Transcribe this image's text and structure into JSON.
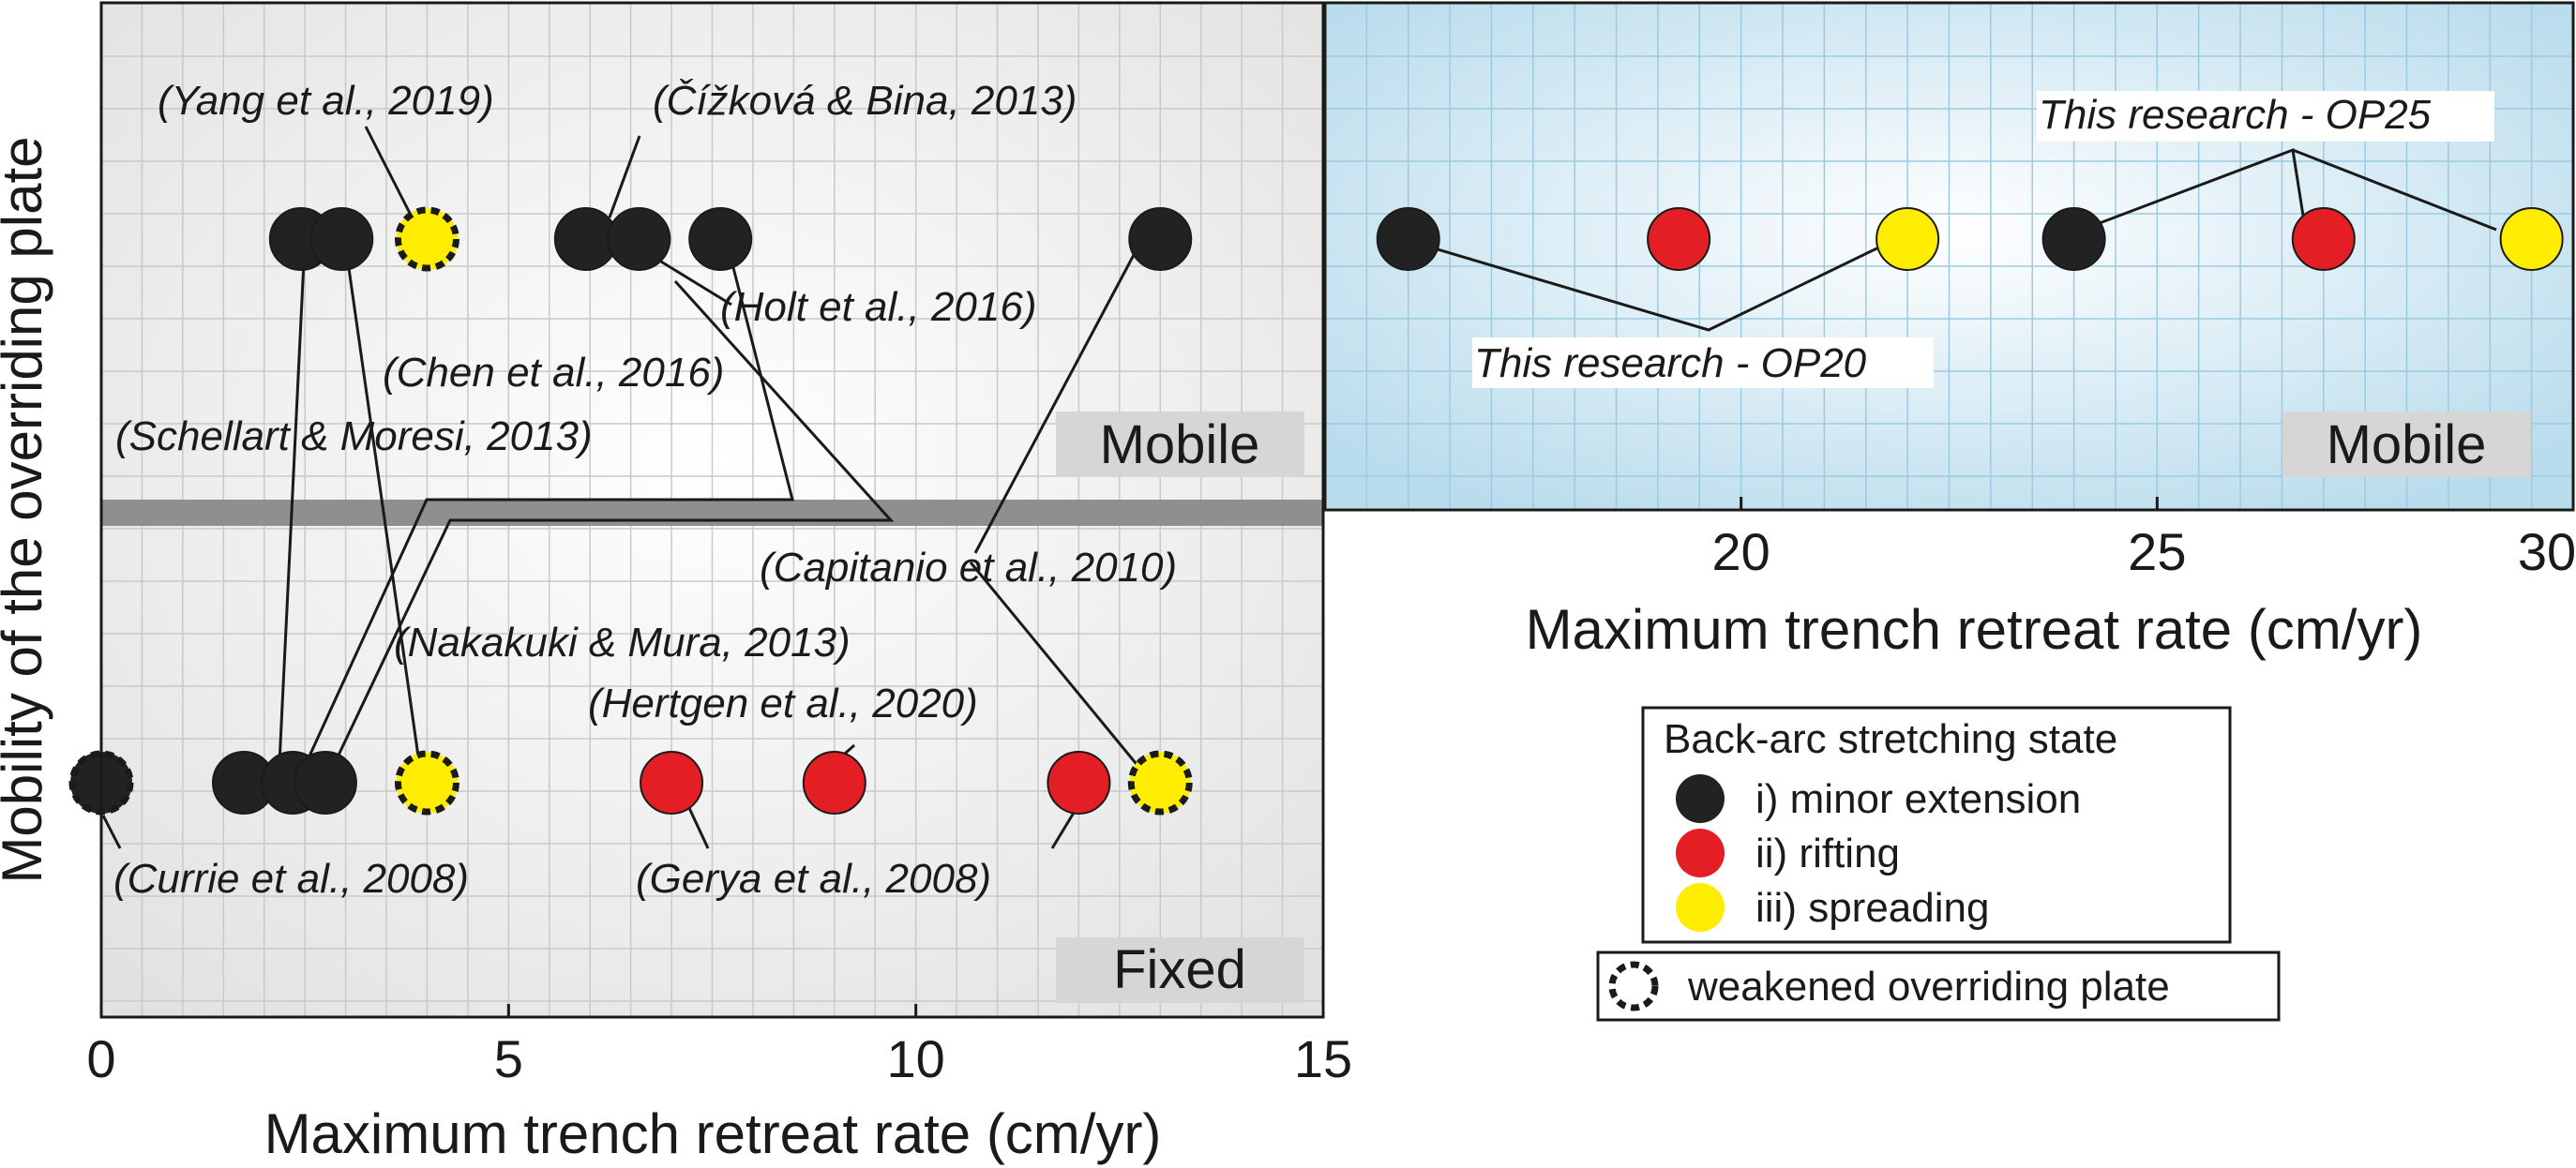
{
  "chart_data": [
    {
      "type": "scatter",
      "panel": "left",
      "xlabel": "Maximum trench retreat rate (cm/yr)",
      "ylabel": "Mobility of the overriding plate",
      "xlim": [
        0,
        15
      ],
      "xticks": [
        "0",
        "5",
        "10",
        "15"
      ],
      "grid": true,
      "band_labels": {
        "mobile": "Mobile",
        "fixed": "Fixed"
      },
      "points": [
        {
          "x": 2.45,
          "row": "mobile",
          "state": "minor extension",
          "weakened": false
        },
        {
          "x": 2.95,
          "row": "mobile",
          "state": "minor extension",
          "weakened": false
        },
        {
          "x": 4.0,
          "row": "mobile",
          "state": "spreading",
          "weakened": true
        },
        {
          "x": 5.95,
          "row": "mobile",
          "state": "minor extension",
          "weakened": false
        },
        {
          "x": 6.6,
          "row": "mobile",
          "state": "minor extension",
          "weakened": false
        },
        {
          "x": 7.6,
          "row": "mobile",
          "state": "minor extension",
          "weakened": false
        },
        {
          "x": 13.0,
          "row": "mobile",
          "state": "minor extension",
          "weakened": false
        },
        {
          "x": 0.0,
          "row": "fixed",
          "state": "minor extension",
          "weakened": true
        },
        {
          "x": 1.75,
          "row": "fixed",
          "state": "minor extension",
          "weakened": false
        },
        {
          "x": 2.35,
          "row": "fixed",
          "state": "minor extension",
          "weakened": false
        },
        {
          "x": 2.75,
          "row": "fixed",
          "state": "minor extension",
          "weakened": false
        },
        {
          "x": 4.0,
          "row": "fixed",
          "state": "spreading",
          "weakened": true
        },
        {
          "x": 7.0,
          "row": "fixed",
          "state": "rifting",
          "weakened": false
        },
        {
          "x": 9.0,
          "row": "fixed",
          "state": "rifting",
          "weakened": false
        },
        {
          "x": 12.0,
          "row": "fixed",
          "state": "rifting",
          "weakened": false
        },
        {
          "x": 13.0,
          "row": "fixed",
          "state": "spreading",
          "weakened": true
        }
      ],
      "annotations": [
        "(Yang et al., 2019)",
        "(Čížková & Bina, 2013)",
        "(Holt et al., 2016)",
        "(Chen et al., 2016)",
        "(Schellart & Moresi, 2013)",
        "(Capitanio et al., 2010)",
        "(Nakakuki & Mura, 2013)",
        "(Hertgen et al., 2020)",
        "(Currie et al., 2008)",
        "(Gerya et al., 2008)"
      ]
    },
    {
      "type": "scatter",
      "panel": "right",
      "xlabel": "Maximum trench retreat rate (cm/yr)",
      "xlim": [
        15,
        30
      ],
      "xticks": [
        "20",
        "25",
        "30"
      ],
      "grid": true,
      "band_label": "Mobile",
      "points": [
        {
          "x": 16.0,
          "state": "minor extension",
          "group": "OP20"
        },
        {
          "x": 19.25,
          "state": "rifting",
          "group": "OP20"
        },
        {
          "x": 22.0,
          "state": "spreading",
          "group": "OP20"
        },
        {
          "x": 24.0,
          "state": "minor extension",
          "group": "OP25"
        },
        {
          "x": 27.0,
          "state": "rifting",
          "group": "OP25"
        },
        {
          "x": 29.5,
          "state": "spreading",
          "group": "OP25"
        }
      ],
      "annotations": [
        "This research - OP20",
        "This research - OP25"
      ]
    }
  ],
  "legend": {
    "title": "Back-arc stretching state",
    "items": [
      {
        "label": "i) minor extension",
        "color": "#222222"
      },
      {
        "label": "ii) rifting",
        "color": "#e31e24"
      },
      {
        "label": "iii) spreading",
        "color": "#ffed00"
      }
    ],
    "weakened_label": "weakened overriding plate"
  },
  "colors": {
    "minor extension": "#222222",
    "rifting": "#e31e24",
    "spreading": "#ffed00",
    "right_panel_bg": "#bfe0ee",
    "divider": "#8f8f8f",
    "band_label_bg": "#d6d6d6"
  }
}
